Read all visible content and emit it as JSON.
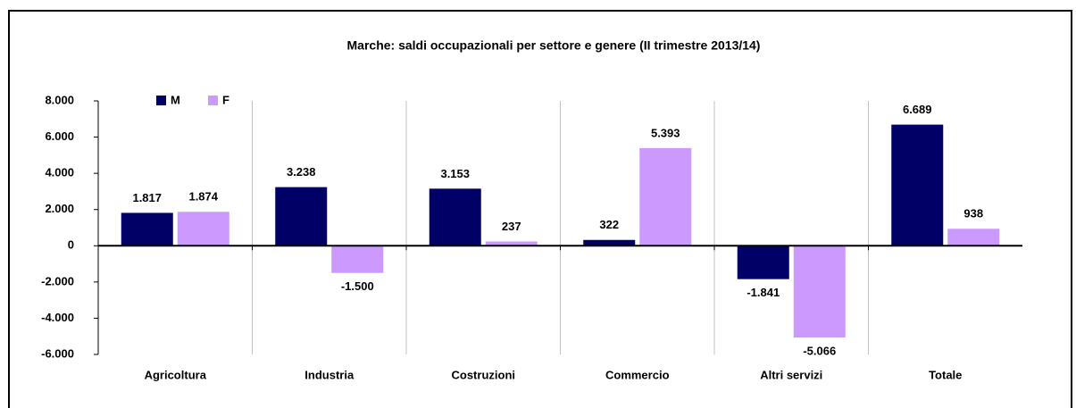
{
  "chart_data": {
    "type": "bar",
    "title": "Marche: saldi occupazionali per settore e genere (II trimestre 2013/14)",
    "categories": [
      "Agricoltura",
      "Industria",
      "Costruzioni",
      "Commercio",
      "Altri servizi",
      "Totale"
    ],
    "series": [
      {
        "name": "M",
        "color": "#000066",
        "values": [
          1817,
          3238,
          3153,
          322,
          -1841,
          6689
        ],
        "value_labels": [
          "1.817",
          "3.238",
          "3.153",
          "322",
          "-1.841",
          "6.689"
        ]
      },
      {
        "name": "F",
        "color": "#cc99ff",
        "values": [
          1874,
          -1500,
          237,
          5393,
          -5066,
          938
        ],
        "value_labels": [
          "1.874",
          "-1.500",
          "237",
          "5.393",
          "-5.066",
          "938"
        ]
      }
    ],
    "ylim": [
      -6000,
      8000
    ],
    "yticks": [
      {
        "value": -6000,
        "label": "-6.000"
      },
      {
        "value": -4000,
        "label": "-4.000"
      },
      {
        "value": -2000,
        "label": "-2.000"
      },
      0,
      {
        "value": 2000,
        "label": "2.000"
      },
      {
        "value": 4000,
        "label": "4.000"
      },
      {
        "value": 6000,
        "label": "6.000"
      },
      {
        "value": 8000,
        "label": "8.000"
      }
    ],
    "legend": "top-left"
  }
}
